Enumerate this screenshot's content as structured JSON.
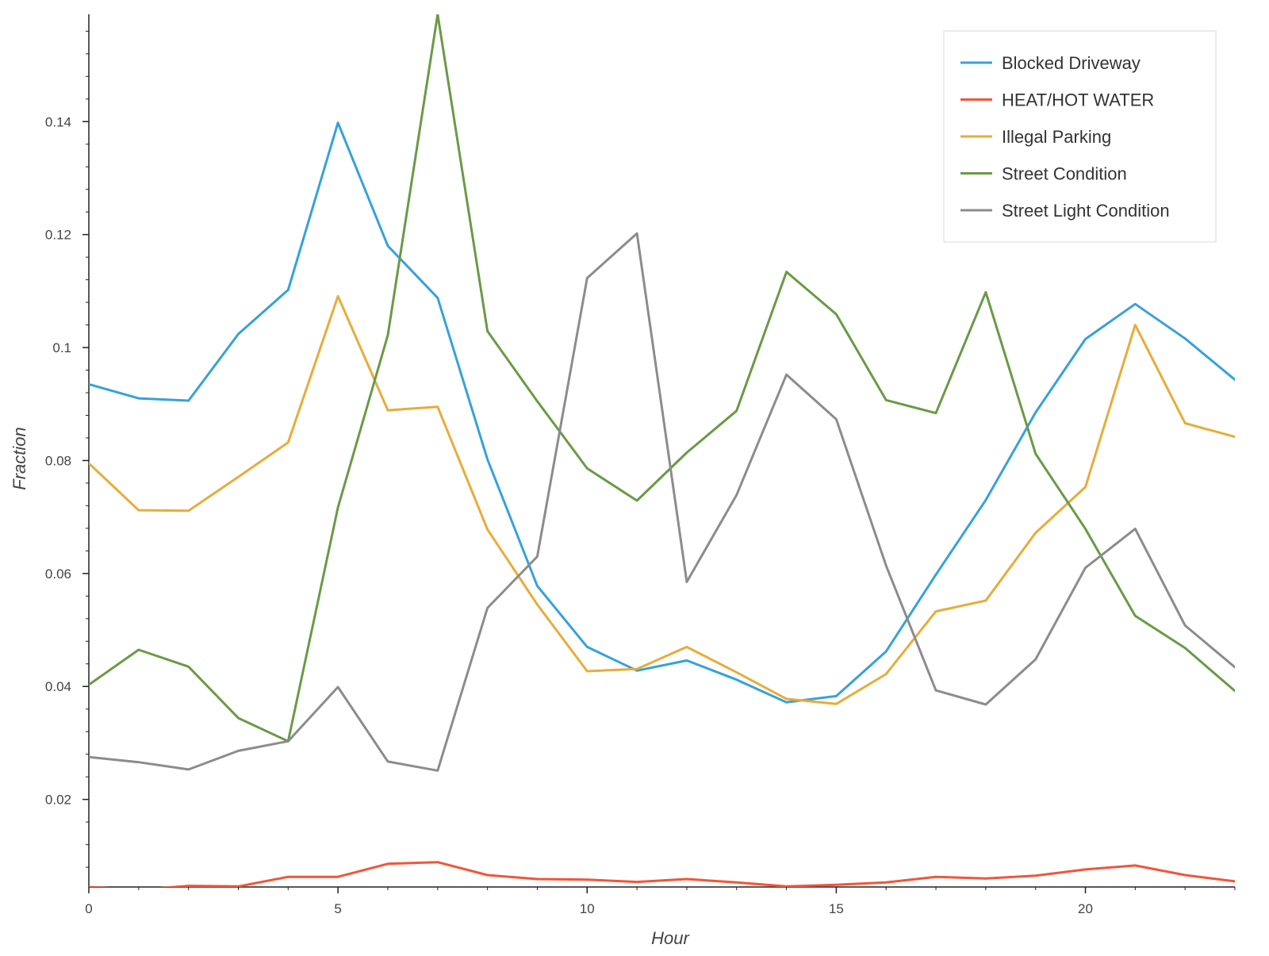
{
  "chart_data": {
    "type": "line",
    "title": "",
    "xlabel": "Hour",
    "ylabel": "Fraction",
    "xlim": [
      0,
      23
    ],
    "ylim": [
      0.0045,
      0.159
    ],
    "xticks": [
      0,
      5,
      10,
      15,
      20
    ],
    "xtick_labels": [
      "0",
      "5",
      "10",
      "15",
      "20"
    ],
    "yticks": [
      0.02,
      0.04,
      0.06,
      0.08,
      0.1,
      0.12,
      0.14
    ],
    "ytick_labels": [
      "0.02",
      "0.04",
      "0.06",
      "0.08",
      "0.1",
      "0.12",
      "0.14"
    ],
    "grid": false,
    "legend_position": "top-right",
    "x": [
      0,
      1,
      2,
      3,
      4,
      5,
      6,
      7,
      8,
      9,
      10,
      11,
      12,
      13,
      14,
      15,
      16,
      17,
      18,
      19,
      20,
      21,
      22,
      23
    ],
    "series": [
      {
        "name": "Blocked Driveway",
        "color": "#36a2d9",
        "values": [
          0.0935,
          0.091,
          0.0906,
          0.1024,
          0.1102,
          0.1398,
          0.118,
          0.1088,
          0.0802,
          0.0578,
          0.047,
          0.0428,
          0.0446,
          0.0412,
          0.0372,
          0.0383,
          0.0462,
          0.0598,
          0.073,
          0.0885,
          0.1015,
          0.1077,
          0.1016,
          0.0943
        ]
      },
      {
        "name": "HEAT/HOT WATER",
        "color": "#f0563a",
        "values": [
          0.0045,
          0.004,
          0.0047,
          0.0046,
          0.0063,
          0.0063,
          0.0086,
          0.0089,
          0.0066,
          0.0059,
          0.0058,
          0.0054,
          0.0059,
          0.0053,
          0.0046,
          0.0049,
          0.0053,
          0.0063,
          0.006,
          0.0065,
          0.0076,
          0.0083,
          0.0066,
          0.0055
        ]
      },
      {
        "name": "Illegal Parking",
        "color": "#e8ac3a",
        "values": [
          0.0795,
          0.0712,
          0.0711,
          0.0771,
          0.0832,
          0.1091,
          0.0889,
          0.0895,
          0.0678,
          0.0545,
          0.0427,
          0.0431,
          0.047,
          0.0425,
          0.0378,
          0.0369,
          0.0422,
          0.0533,
          0.0552,
          0.0672,
          0.0753,
          0.104,
          0.0866,
          0.0842
        ]
      },
      {
        "name": "Street Condition",
        "color": "#6a9a46",
        "values": [
          0.0403,
          0.0465,
          0.0435,
          0.0344,
          0.0303,
          0.0717,
          0.1022,
          0.159,
          0.1029,
          0.0905,
          0.0786,
          0.0729,
          0.0814,
          0.0888,
          0.1134,
          0.1059,
          0.0907,
          0.0884,
          0.1098,
          0.0812,
          0.0679,
          0.0525,
          0.0468,
          0.0392
        ]
      },
      {
        "name": "Street Light Condition",
        "color": "#8c8c8c",
        "values": [
          0.0275,
          0.0266,
          0.0253,
          0.0286,
          0.0303,
          0.0399,
          0.0267,
          0.0251,
          0.0539,
          0.063,
          0.1123,
          0.1202,
          0.0585,
          0.0739,
          0.0952,
          0.0873,
          0.0614,
          0.0393,
          0.0368,
          0.0448,
          0.061,
          0.0679,
          0.0508,
          0.0434
        ]
      }
    ]
  }
}
